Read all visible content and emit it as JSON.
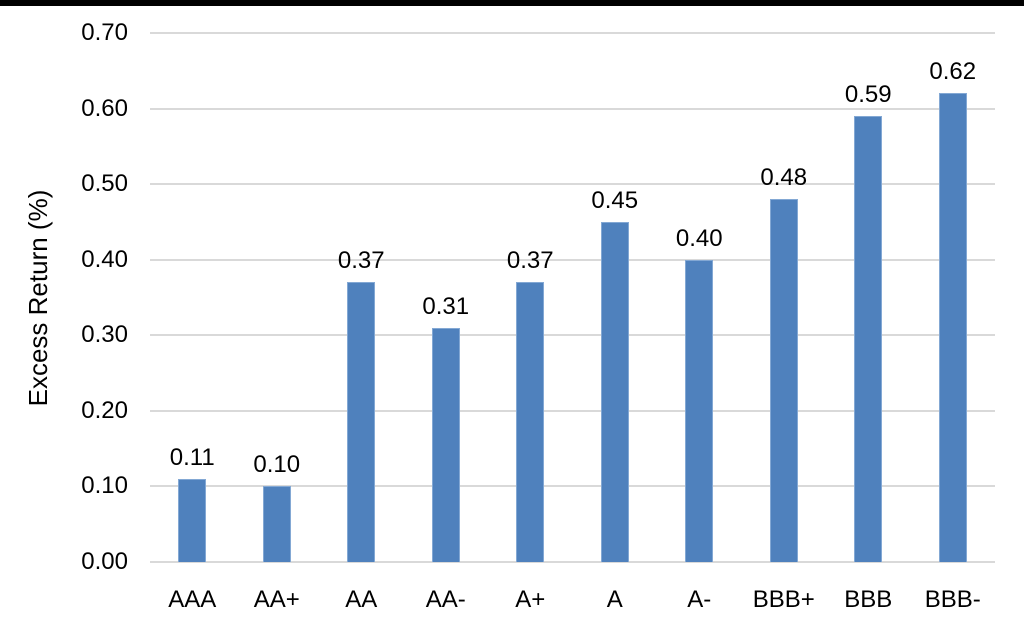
{
  "letterbox": {
    "color": "#000000"
  },
  "chart_data": {
    "type": "bar",
    "title": "",
    "categories": [
      "AAA",
      "AA+",
      "AA",
      "AA-",
      "A+",
      "A",
      "A-",
      "BBB+",
      "BBB",
      "BBB-"
    ],
    "values": [
      0.11,
      0.1,
      0.37,
      0.31,
      0.37,
      0.45,
      0.4,
      0.48,
      0.59,
      0.62
    ],
    "data_labels": [
      "0.11",
      "0.10",
      "0.37",
      "0.31",
      "0.37",
      "0.45",
      "0.40",
      "0.48",
      "0.59",
      "0.62"
    ],
    "xlabel": "",
    "ylabel": "Excess Return (%)",
    "ylim": [
      0,
      0.7
    ],
    "ytick_step": 0.1,
    "ytick_labels": [
      "0.70",
      "0.60",
      "0.50",
      "0.40",
      "0.30",
      "0.20",
      "0.10",
      "0.00"
    ],
    "grid": "horizontal gridlines on, no vertical",
    "legend": "none",
    "colors": {
      "bar_fill": "#4F81BD",
      "bar_border": "#83A8D4",
      "gridline": "#D9D9D9",
      "text": "#000000",
      "background": "#FFFFFF"
    }
  }
}
